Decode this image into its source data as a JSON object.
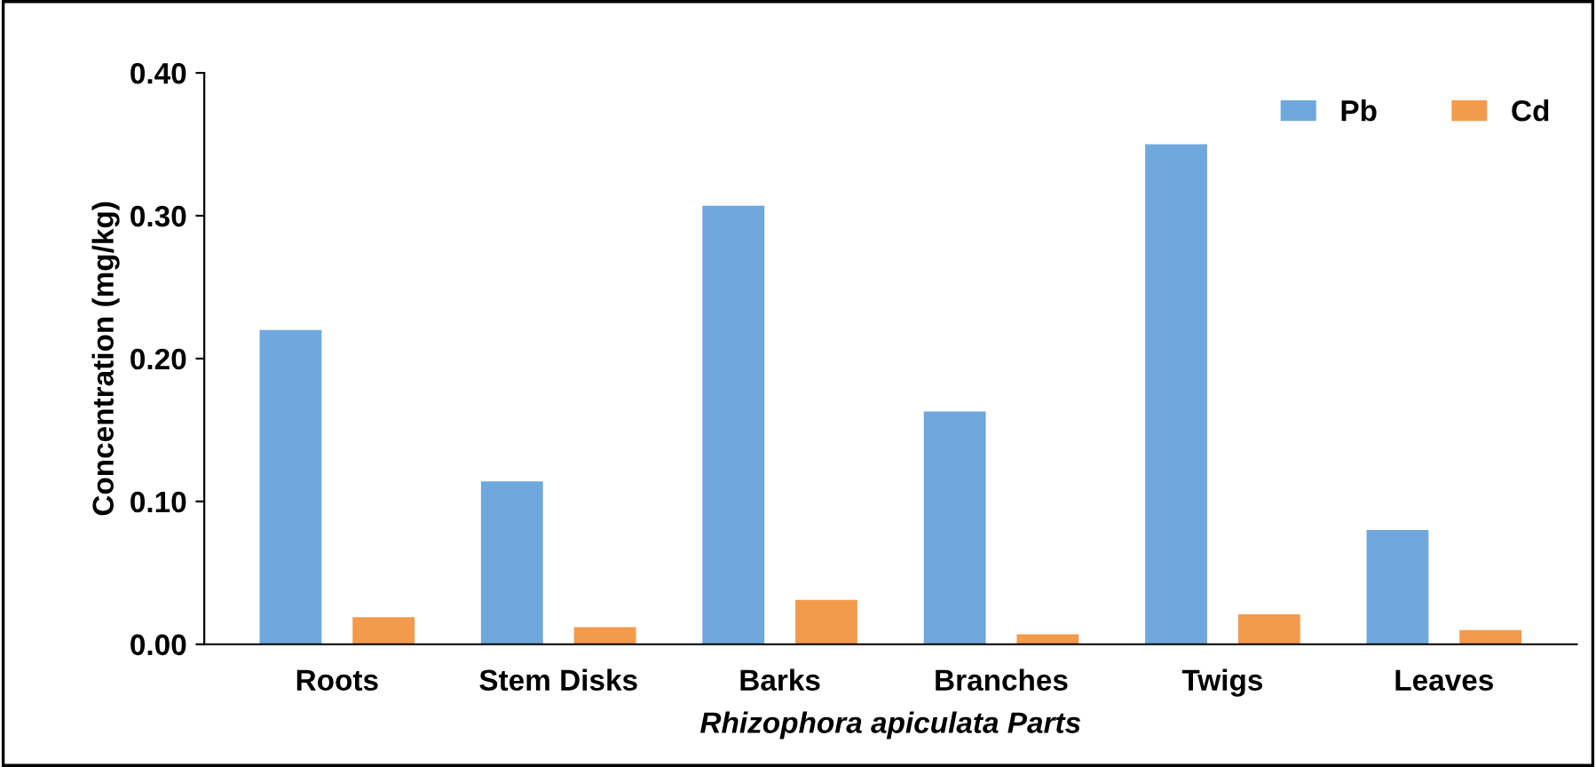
{
  "chart_data": {
    "type": "bar",
    "ylabel": "Concentration (mg/kg)",
    "xlabel": "Rhizophora apiculata Parts",
    "categories": [
      "Roots",
      "Stem Disks",
      "Barks",
      "Branches",
      "Twigs",
      "Leaves"
    ],
    "series": [
      {
        "name": "Pb",
        "color": "#6fa8dc",
        "values": [
          0.22,
          0.114,
          0.307,
          0.163,
          0.35,
          0.08
        ]
      },
      {
        "name": "Cd",
        "color": "#f39a4c",
        "values": [
          0.019,
          0.012,
          0.031,
          0.007,
          0.021,
          0.01
        ]
      }
    ],
    "ylim": [
      0,
      0.4
    ],
    "yticks": [
      {
        "value": 0,
        "label": "0.00"
      },
      {
        "value": 0.1,
        "label": "0.10"
      },
      {
        "value": 0.2,
        "label": "0.20"
      },
      {
        "value": 0.3,
        "label": "0.30"
      },
      {
        "value": 0.4,
        "label": "0.40"
      }
    ],
    "grid": false,
    "legend": "top right"
  }
}
